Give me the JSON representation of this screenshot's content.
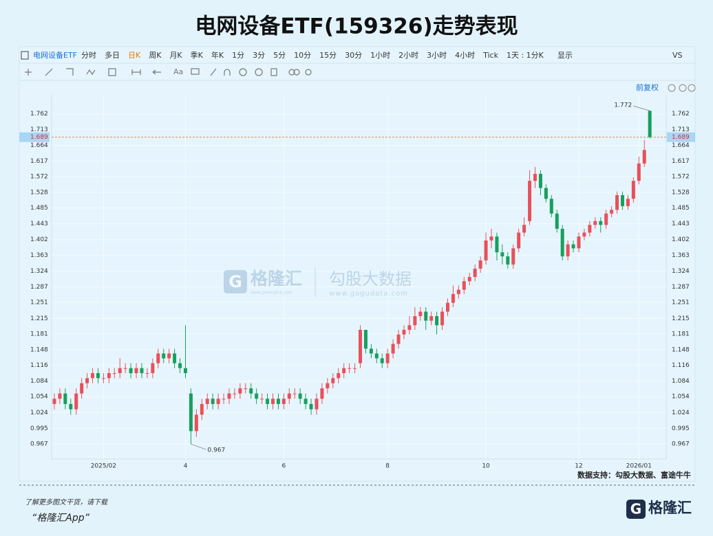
{
  "chart_data": {
    "type": "candlestick",
    "title": "电网设备ETF(159326)走势表现",
    "series": [
      {
        "name": "电网设备ETF",
        "up_color": "#e8505b",
        "down_color": "#16a05d",
        "values": [
          [
            1.04,
            1.06,
            1.03,
            1.05
          ],
          [
            1.05,
            1.07,
            1.04,
            1.06
          ],
          [
            1.06,
            1.07,
            1.03,
            1.04
          ],
          [
            1.04,
            1.05,
            1.02,
            1.03
          ],
          [
            1.03,
            1.07,
            1.02,
            1.06
          ],
          [
            1.06,
            1.09,
            1.05,
            1.08
          ],
          [
            1.08,
            1.1,
            1.07,
            1.09
          ],
          [
            1.09,
            1.11,
            1.08,
            1.1
          ],
          [
            1.1,
            1.11,
            1.08,
            1.09
          ],
          [
            1.09,
            1.1,
            1.08,
            1.09
          ],
          [
            1.09,
            1.11,
            1.08,
            1.1
          ],
          [
            1.1,
            1.11,
            1.09,
            1.1
          ],
          [
            1.1,
            1.13,
            1.09,
            1.11
          ],
          [
            1.11,
            1.12,
            1.1,
            1.11
          ],
          [
            1.11,
            1.12,
            1.09,
            1.1
          ],
          [
            1.1,
            1.12,
            1.09,
            1.11
          ],
          [
            1.11,
            1.12,
            1.09,
            1.1
          ],
          [
            1.1,
            1.11,
            1.09,
            1.1
          ],
          [
            1.1,
            1.13,
            1.09,
            1.12
          ],
          [
            1.12,
            1.15,
            1.11,
            1.14
          ],
          [
            1.14,
            1.15,
            1.12,
            1.13
          ],
          [
            1.13,
            1.15,
            1.12,
            1.14
          ],
          [
            1.14,
            1.15,
            1.11,
            1.12
          ],
          [
            1.12,
            1.13,
            1.1,
            1.11
          ],
          [
            1.11,
            1.2,
            1.09,
            1.1
          ],
          [
            1.06,
            1.07,
            0.967,
            0.99
          ],
          [
            0.99,
            1.03,
            0.98,
            1.02
          ],
          [
            1.02,
            1.05,
            1.01,
            1.04
          ],
          [
            1.04,
            1.06,
            1.03,
            1.05
          ],
          [
            1.05,
            1.06,
            1.03,
            1.04
          ],
          [
            1.04,
            1.06,
            1.03,
            1.05
          ],
          [
            1.05,
            1.06,
            1.04,
            1.05
          ],
          [
            1.05,
            1.07,
            1.04,
            1.06
          ],
          [
            1.06,
            1.07,
            1.05,
            1.06
          ],
          [
            1.06,
            1.08,
            1.05,
            1.07
          ],
          [
            1.07,
            1.08,
            1.06,
            1.07
          ],
          [
            1.07,
            1.08,
            1.05,
            1.06
          ],
          [
            1.06,
            1.07,
            1.04,
            1.05
          ],
          [
            1.05,
            1.06,
            1.04,
            1.05
          ],
          [
            1.05,
            1.06,
            1.03,
            1.04
          ],
          [
            1.04,
            1.06,
            1.03,
            1.05
          ],
          [
            1.05,
            1.06,
            1.03,
            1.04
          ],
          [
            1.04,
            1.06,
            1.03,
            1.05
          ],
          [
            1.05,
            1.07,
            1.04,
            1.06
          ],
          [
            1.06,
            1.07,
            1.05,
            1.06
          ],
          [
            1.06,
            1.07,
            1.04,
            1.05
          ],
          [
            1.05,
            1.06,
            1.03,
            1.04
          ],
          [
            1.04,
            1.05,
            1.02,
            1.03
          ],
          [
            1.03,
            1.06,
            1.02,
            1.05
          ],
          [
            1.05,
            1.08,
            1.04,
            1.07
          ],
          [
            1.07,
            1.09,
            1.06,
            1.08
          ],
          [
            1.08,
            1.1,
            1.07,
            1.09
          ],
          [
            1.09,
            1.11,
            1.08,
            1.1
          ],
          [
            1.1,
            1.12,
            1.09,
            1.11
          ],
          [
            1.11,
            1.12,
            1.1,
            1.11
          ],
          [
            1.11,
            1.12,
            1.1,
            1.11
          ],
          [
            1.12,
            1.2,
            1.11,
            1.19
          ],
          [
            1.19,
            1.19,
            1.14,
            1.15
          ],
          [
            1.15,
            1.16,
            1.13,
            1.14
          ],
          [
            1.14,
            1.15,
            1.12,
            1.13
          ],
          [
            1.13,
            1.14,
            1.11,
            1.12
          ],
          [
            1.12,
            1.15,
            1.11,
            1.14
          ],
          [
            1.14,
            1.17,
            1.13,
            1.16
          ],
          [
            1.16,
            1.19,
            1.15,
            1.18
          ],
          [
            1.18,
            1.2,
            1.17,
            1.19
          ],
          [
            1.19,
            1.22,
            1.18,
            1.2
          ],
          [
            1.2,
            1.24,
            1.19,
            1.22
          ],
          [
            1.22,
            1.24,
            1.21,
            1.23
          ],
          [
            1.23,
            1.24,
            1.19,
            1.21
          ],
          [
            1.21,
            1.23,
            1.2,
            1.22
          ],
          [
            1.22,
            1.23,
            1.18,
            1.2
          ],
          [
            1.2,
            1.24,
            1.19,
            1.23
          ],
          [
            1.23,
            1.26,
            1.22,
            1.25
          ],
          [
            1.25,
            1.29,
            1.24,
            1.27
          ],
          [
            1.27,
            1.29,
            1.26,
            1.28
          ],
          [
            1.28,
            1.31,
            1.27,
            1.3
          ],
          [
            1.3,
            1.32,
            1.29,
            1.31
          ],
          [
            1.31,
            1.34,
            1.3,
            1.33
          ],
          [
            1.33,
            1.36,
            1.32,
            1.35
          ],
          [
            1.35,
            1.42,
            1.34,
            1.4
          ],
          [
            1.4,
            1.43,
            1.38,
            1.41
          ],
          [
            1.41,
            1.42,
            1.35,
            1.37
          ],
          [
            1.37,
            1.39,
            1.34,
            1.36
          ],
          [
            1.36,
            1.37,
            1.33,
            1.34
          ],
          [
            1.34,
            1.39,
            1.33,
            1.38
          ],
          [
            1.38,
            1.43,
            1.37,
            1.42
          ],
          [
            1.42,
            1.46,
            1.41,
            1.44
          ],
          [
            1.45,
            1.59,
            1.44,
            1.56
          ],
          [
            1.56,
            1.6,
            1.54,
            1.58
          ],
          [
            1.58,
            1.59,
            1.52,
            1.54
          ],
          [
            1.54,
            1.55,
            1.5,
            1.51
          ],
          [
            1.51,
            1.52,
            1.46,
            1.47
          ],
          [
            1.47,
            1.48,
            1.42,
            1.43
          ],
          [
            1.43,
            1.44,
            1.35,
            1.36
          ],
          [
            1.36,
            1.4,
            1.35,
            1.39
          ],
          [
            1.39,
            1.4,
            1.37,
            1.38
          ],
          [
            1.38,
            1.42,
            1.37,
            1.41
          ],
          [
            1.41,
            1.43,
            1.4,
            1.42
          ],
          [
            1.42,
            1.45,
            1.41,
            1.44
          ],
          [
            1.44,
            1.46,
            1.43,
            1.45
          ],
          [
            1.45,
            1.46,
            1.42,
            1.44
          ],
          [
            1.44,
            1.48,
            1.43,
            1.47
          ],
          [
            1.47,
            1.49,
            1.46,
            1.48
          ],
          [
            1.48,
            1.53,
            1.47,
            1.52
          ],
          [
            1.52,
            1.53,
            1.48,
            1.49
          ],
          [
            1.49,
            1.52,
            1.48,
            1.51
          ],
          [
            1.51,
            1.57,
            1.5,
            1.56
          ],
          [
            1.56,
            1.63,
            1.55,
            1.61
          ],
          [
            1.61,
            1.68,
            1.6,
            1.65
          ],
          [
            1.772,
            1.772,
            1.685,
            1.689
          ]
        ]
      }
    ],
    "xlim": [
      -0.5,
      112
    ],
    "xticks": [
      {
        "value": 9,
        "label": "2025/02"
      },
      4,
      6,
      8,
      10,
      12,
      {
        "value": 107,
        "label": "2026/01"
      }
    ],
    "xtick_positions": [
      9,
      24,
      42,
      61,
      79,
      96,
      107
    ],
    "ylim": [
      0.941,
      1.824
    ],
    "log_scale": true,
    "grid": true,
    "yticks": [
      1.762,
      1.713,
      1.664,
      1.617,
      1.572,
      1.528,
      1.485,
      1.443,
      1.402,
      1.363,
      1.324,
      1.287,
      1.251,
      1.215,
      1.181,
      1.148,
      1.116,
      1.084,
      1.054,
      1.024,
      0.995,
      0.967
    ],
    "adjust": "前复权",
    "source": "数据支持：勾股大数据、富途牛牛"
  },
  "toolbar": [
    "分时",
    "多日",
    "日K",
    "周K",
    "月K",
    "季K",
    "年K",
    "1分",
    "3分",
    "5分",
    "10分",
    "15分",
    "30分",
    "1小时",
    "2小时",
    "3小时",
    "4小时",
    "Tick",
    "1天 : 1分K"
  ],
  "toolbar_right": [
    "显示",
    "VS"
  ],
  "watermark": {
    "brand": "格隆汇",
    "brand_url": "www.gelonghui.com",
    "partner": "勾股大数据",
    "partner_url": "www.gogudata.com"
  },
  "footer": {
    "prompt": "了解更多图文干货，请下载",
    "app": "“格隆汇App”",
    "logo": "格隆汇"
  }
}
